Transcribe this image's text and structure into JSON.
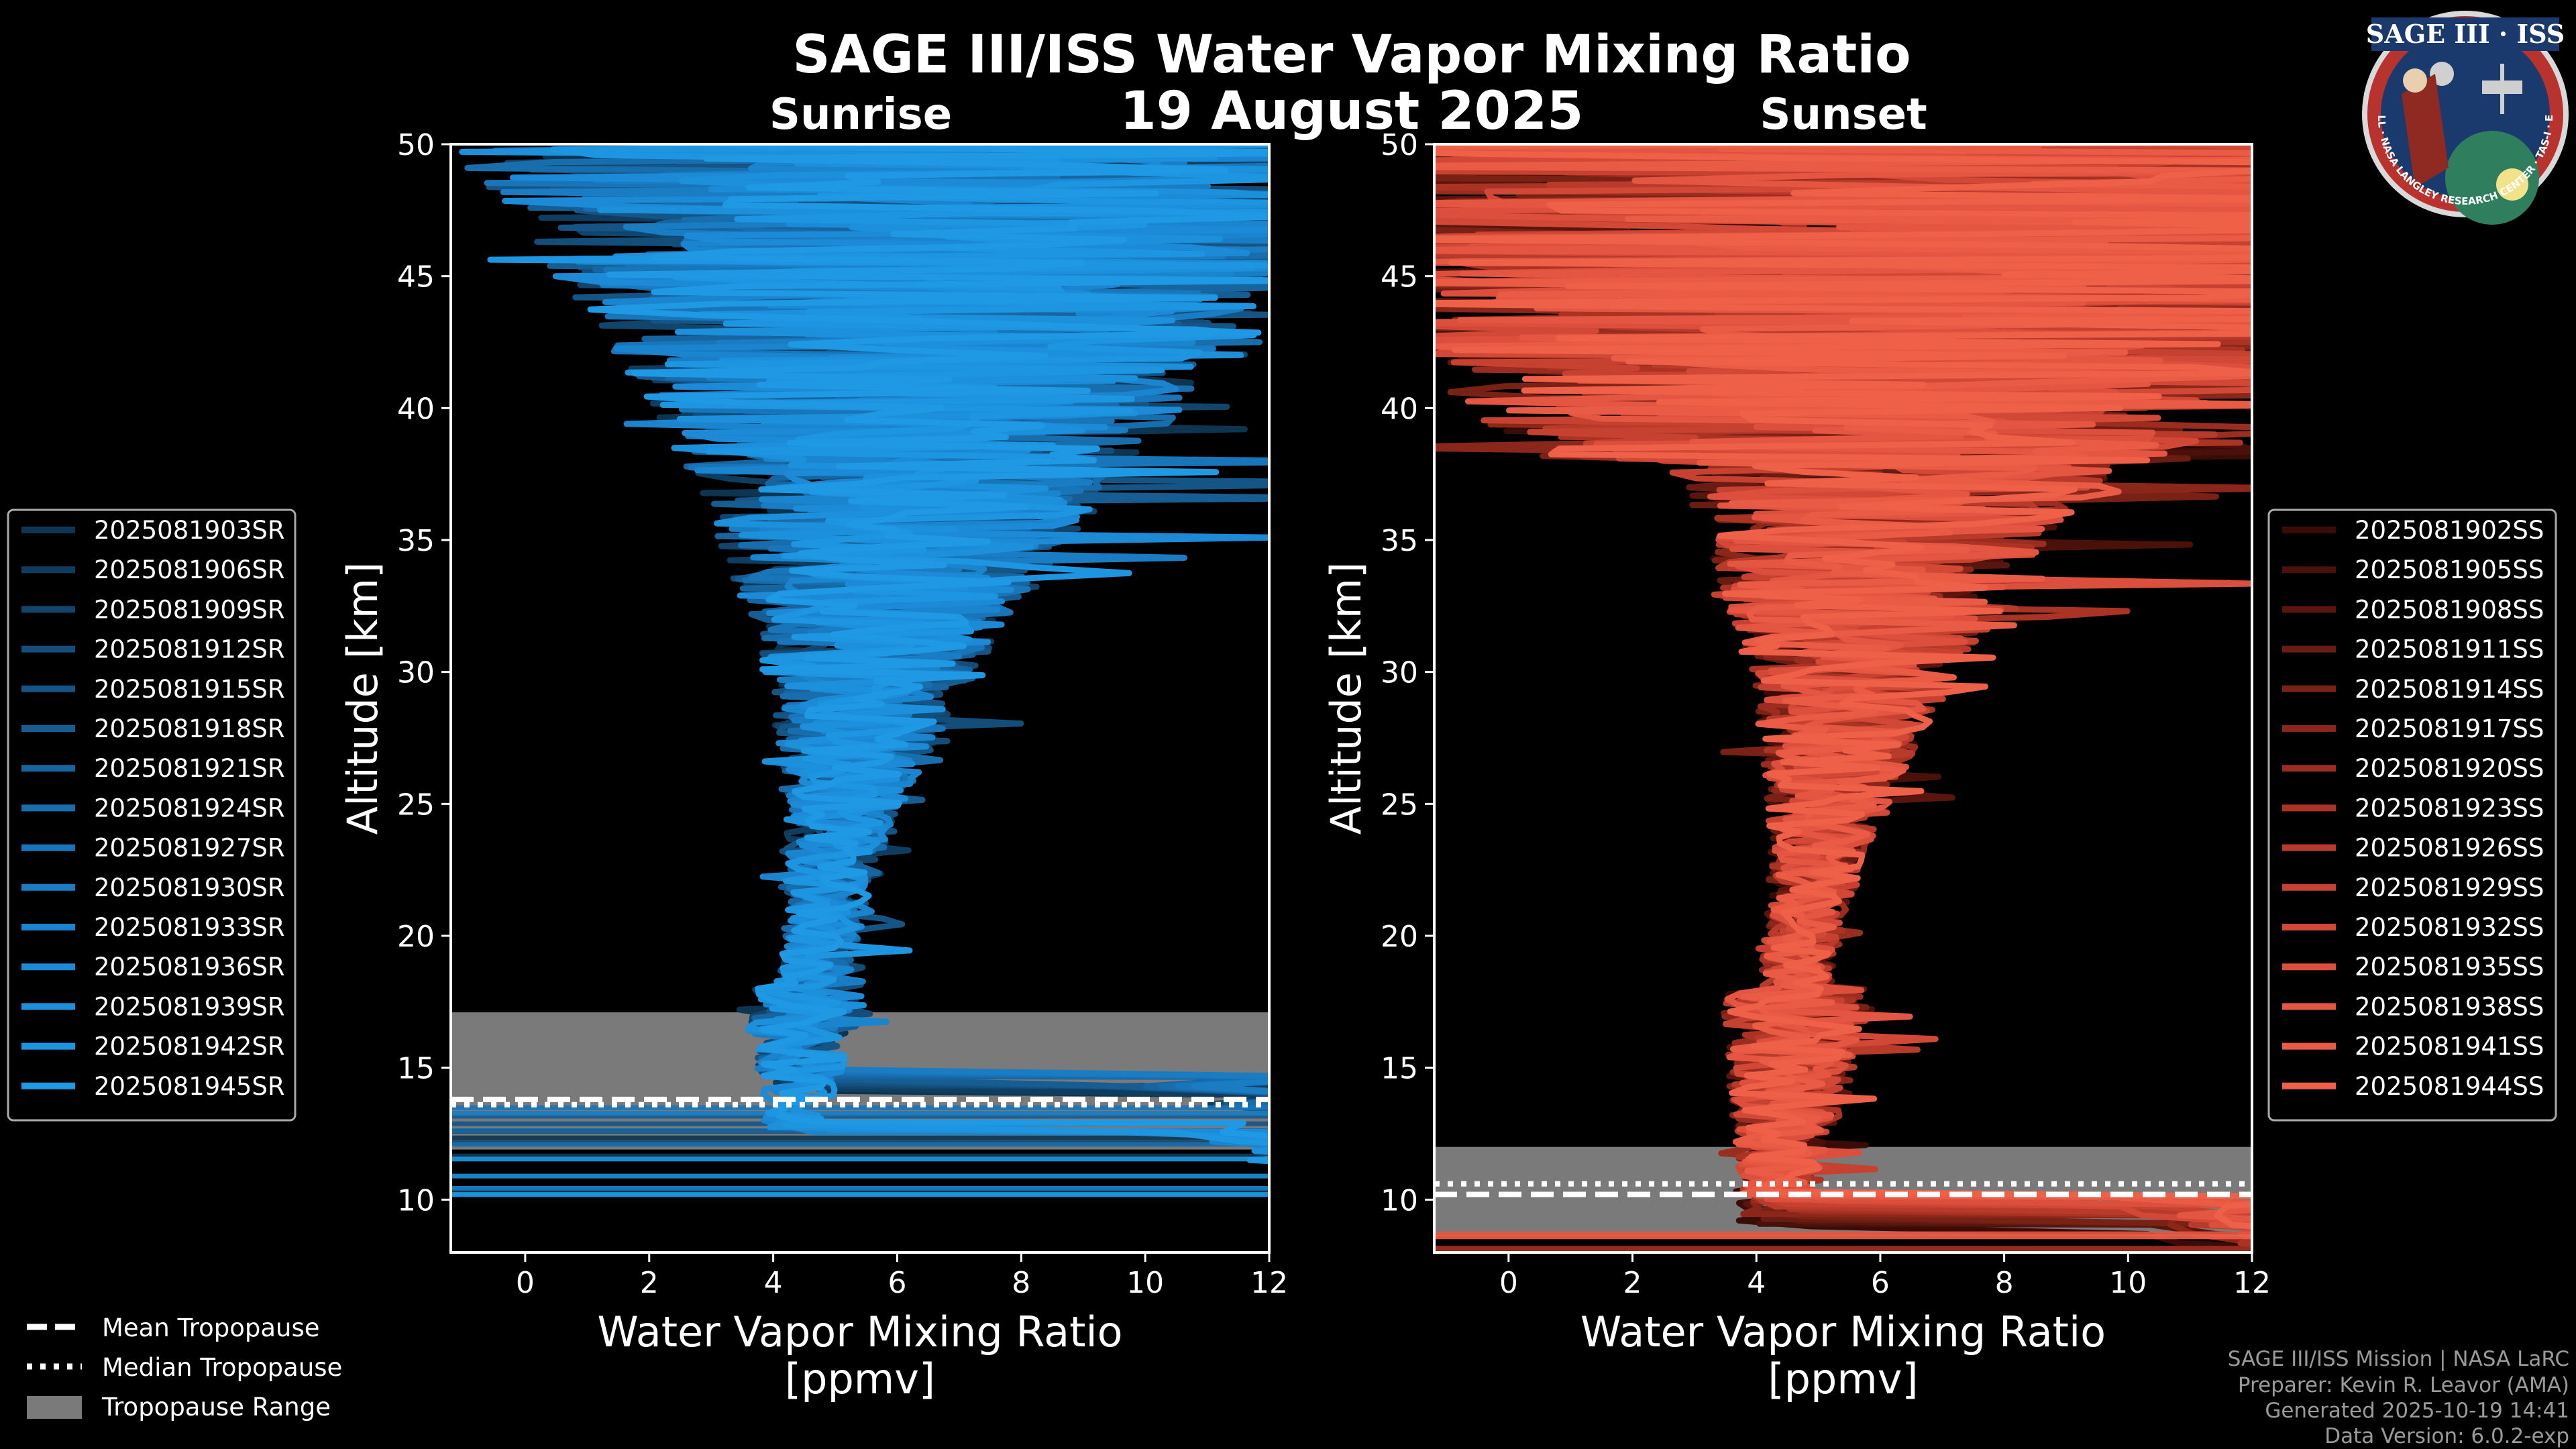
{
  "title": "SAGE III/ISS Water Vapor Mixing Ratio",
  "date": "19 August 2025",
  "logo": {
    "text": "SAGE III · ISS",
    "ring_text": "BALL · NASA LANGLEY RESEARCH CENTER · TAS-I · ESA"
  },
  "credits": [
    "SAGE III/ISS Mission | NASA LaRC",
    "Preparer: Kevin R. Leavor (AMA)",
    "Generated 2025-10-19 14:41",
    "Data Version: 6.0.2-exp"
  ],
  "tropopause_legend": [
    "Mean Tropopause",
    "Median Tropopause",
    "Tropopause Range"
  ],
  "colors": {
    "background": "#000000",
    "sunrise": "#1e90d8",
    "sunset": "#f0604a",
    "tropo_band": "#7a7a7a"
  },
  "chart_data": [
    {
      "type": "line",
      "subtitle": "Sunrise",
      "xlabel": "Water Vapor Mixing Ratio\n[ppmv]",
      "ylabel": "Altitude [km]",
      "xlim": [
        -1.2,
        12
      ],
      "ylim": [
        8,
        50
      ],
      "xticks": [
        0,
        2,
        4,
        6,
        8,
        10,
        12
      ],
      "yticks": [
        10,
        15,
        20,
        25,
        30,
        35,
        40,
        45,
        50
      ],
      "tropopause": {
        "mean": 13.8,
        "median": 13.6,
        "range": [
          11.9,
          17.1
        ]
      },
      "series": [
        {
          "name": "2025081903SR",
          "color": "#0d3552"
        },
        {
          "name": "2025081906SR",
          "color": "#0f3d5f"
        },
        {
          "name": "2025081909SR",
          "color": "#11456c"
        },
        {
          "name": "2025081912SR",
          "color": "#134d79"
        },
        {
          "name": "2025081915SR",
          "color": "#155586"
        },
        {
          "name": "2025081918SR",
          "color": "#165d93"
        },
        {
          "name": "2025081921SR",
          "color": "#1765a0"
        },
        {
          "name": "2025081924SR",
          "color": "#186dad"
        },
        {
          "name": "2025081927SR",
          "color": "#1975b9"
        },
        {
          "name": "2025081930SR",
          "color": "#1a7dc4"
        },
        {
          "name": "2025081933SR",
          "color": "#1b84ce"
        },
        {
          "name": "2025081936SR",
          "color": "#1c8ad6"
        },
        {
          "name": "2025081939SR",
          "color": "#1d90dc"
        },
        {
          "name": "2025081942SR",
          "color": "#1e95e0"
        },
        {
          "name": "2025081945SR",
          "color": "#1f99e3"
        }
      ]
    },
    {
      "type": "line",
      "subtitle": "Sunset",
      "xlabel": "Water Vapor Mixing Ratio\n[ppmv]",
      "ylabel": "Altitude [km]",
      "xlim": [
        -1.2,
        12
      ],
      "ylim": [
        8,
        50
      ],
      "xticks": [
        0,
        2,
        4,
        6,
        8,
        10,
        12
      ],
      "yticks": [
        10,
        15,
        20,
        25,
        30,
        35,
        40,
        45,
        50
      ],
      "tropopause": {
        "mean": 10.2,
        "median": 10.6,
        "range": [
          8.7,
          12.0
        ]
      },
      "series": [
        {
          "name": "2025081902SS",
          "color": "#3a0c08"
        },
        {
          "name": "2025081905SS",
          "color": "#4a110b"
        },
        {
          "name": "2025081908SS",
          "color": "#5a160e"
        },
        {
          "name": "2025081911SS",
          "color": "#6a1b12"
        },
        {
          "name": "2025081914SS",
          "color": "#7a2116"
        },
        {
          "name": "2025081917SS",
          "color": "#8a271a"
        },
        {
          "name": "2025081920SS",
          "color": "#9a2d1f"
        },
        {
          "name": "2025081923SS",
          "color": "#aa3324"
        },
        {
          "name": "2025081926SS",
          "color": "#b83a2a"
        },
        {
          "name": "2025081929SS",
          "color": "#c64130"
        },
        {
          "name": "2025081932SS",
          "color": "#d24836"
        },
        {
          "name": "2025081935SS",
          "color": "#dc4f3c"
        },
        {
          "name": "2025081938SS",
          "color": "#e45641"
        },
        {
          "name": "2025081941SS",
          "color": "#ea5b45"
        },
        {
          "name": "2025081944SS",
          "color": "#ef6049"
        }
      ]
    }
  ]
}
